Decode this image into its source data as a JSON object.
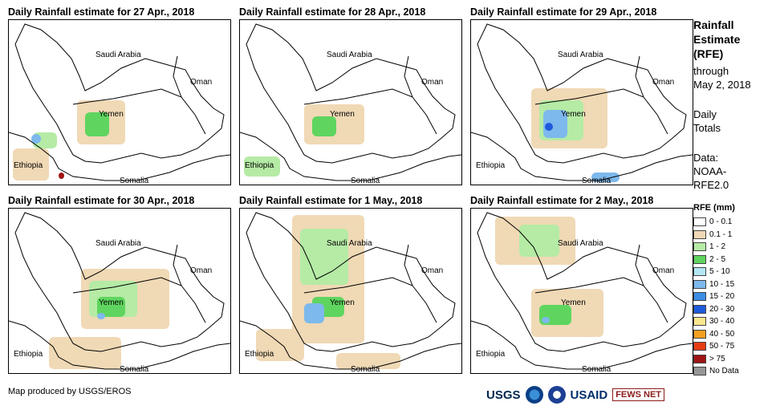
{
  "panels": [
    {
      "title": "Daily Rainfall estimate for 27 Apr., 2018",
      "rain_level": "low-west"
    },
    {
      "title": "Daily Rainfall estimate for 28 Apr., 2018",
      "rain_level": "light"
    },
    {
      "title": "Daily Rainfall estimate for 29 Apr., 2018",
      "rain_level": "heavy-west"
    },
    {
      "title": "Daily Rainfall estimate for 30 Apr., 2018",
      "rain_level": "moderate"
    },
    {
      "title": "Daily Rainfall estimate for 1 May., 2018",
      "rain_level": "widespread"
    },
    {
      "title": "Daily Rainfall estimate for 2 May., 2018",
      "rain_level": "moderate-north"
    }
  ],
  "country_labels": {
    "saudi": "Saudi Arabia",
    "oman": "Oman",
    "yemen": "Yemen",
    "ethiopia": "Ethiopia",
    "somalia": "Somalia"
  },
  "side": {
    "title_line1": "Rainfall",
    "title_line2": "Estimate",
    "title_line3": "(RFE)",
    "through": "through",
    "date": "May 2, 2018",
    "daily1": "Daily",
    "daily2": "Totals",
    "data1": "Data:",
    "data2": "NOAA-",
    "data3": "RFE2.0"
  },
  "legend": {
    "title": "RFE (mm)",
    "items": [
      {
        "label": "0 - 0.1",
        "color": "#ffffff"
      },
      {
        "label": "0.1 - 1",
        "color": "#f0d9b5"
      },
      {
        "label": "1 - 2",
        "color": "#b5eba5"
      },
      {
        "label": "2 - 5",
        "color": "#5fd55f"
      },
      {
        "label": "5 - 10",
        "color": "#b4e6f5"
      },
      {
        "label": "10 - 15",
        "color": "#7db9ec"
      },
      {
        "label": "15 - 20",
        "color": "#3c8ce6"
      },
      {
        "label": "20 - 30",
        "color": "#1e5adc"
      },
      {
        "label": "30 - 40",
        "color": "#fae68c"
      },
      {
        "label": "40 - 50",
        "color": "#f5a01e"
      },
      {
        "label": "50 - 75",
        "color": "#e63c14"
      },
      {
        "label": "> 75",
        "color": "#a01414"
      },
      {
        "label": "No Data",
        "color": "#969696"
      }
    ]
  },
  "credit": "Map produced by USGS/EROS",
  "logos": {
    "usgs": "USGS",
    "usaid": "USAID",
    "fews": "FEWS NET"
  }
}
